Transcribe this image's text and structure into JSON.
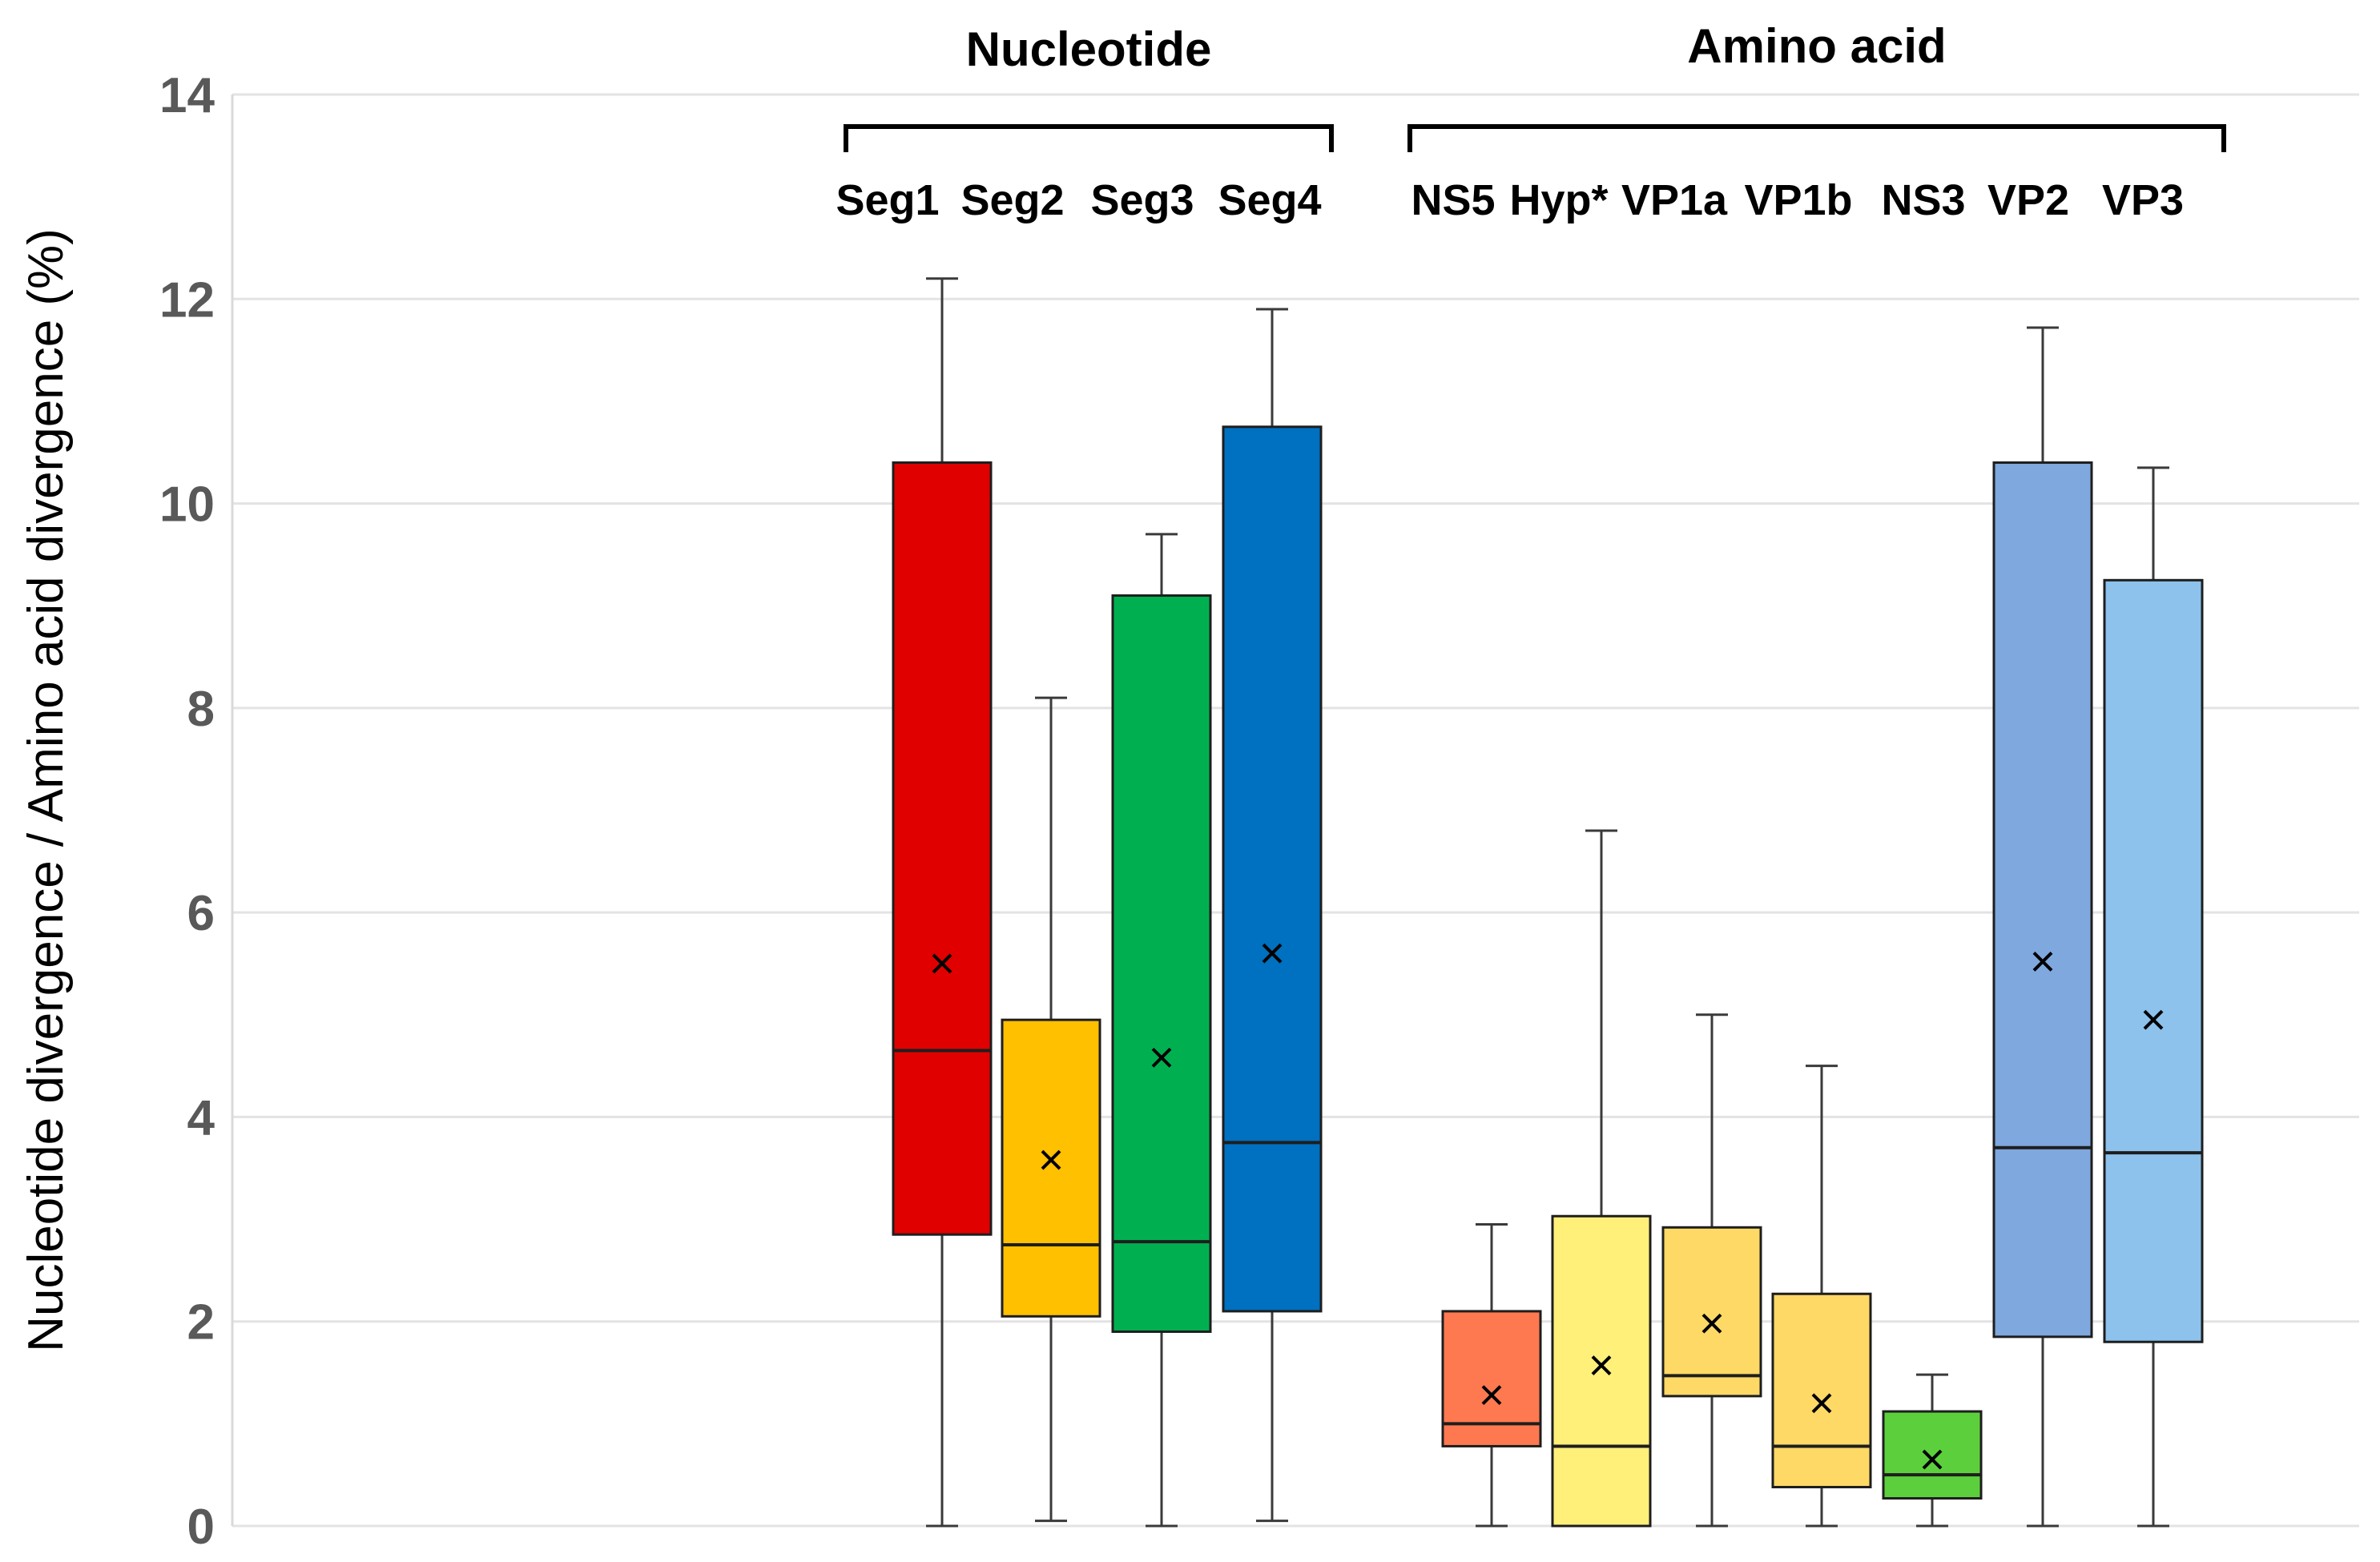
{
  "chart_data": {
    "type": "box",
    "ylabel": "Nucleotide divergence / Amino acid divergence (%)",
    "ylim": [
      0,
      14
    ],
    "yticks": [
      0,
      2,
      4,
      6,
      8,
      10,
      12,
      14
    ],
    "grid": true,
    "groups": [
      {
        "label": "Nucleotide",
        "categories": [
          "Seg1",
          "Seg2",
          "Seg3",
          "Seg4"
        ]
      },
      {
        "label": "Amino acid",
        "categories": [
          "NS5",
          "Hyp*",
          "VP1a",
          "VP1b",
          "NS3",
          "VP2",
          "VP3"
        ]
      }
    ],
    "boxes": [
      {
        "category": "Seg1",
        "min": 0.0,
        "q1": 2.85,
        "median": 4.65,
        "q3": 10.4,
        "max": 12.2,
        "mean": 5.5,
        "color": "#e00000"
      },
      {
        "category": "Seg2",
        "min": 0.05,
        "q1": 2.05,
        "median": 2.75,
        "q3": 4.95,
        "max": 8.1,
        "mean": 3.58,
        "color": "#ffc000"
      },
      {
        "category": "Seg3",
        "min": 0.0,
        "q1": 1.9,
        "median": 2.78,
        "q3": 9.1,
        "max": 9.7,
        "mean": 4.58,
        "color": "#00b050"
      },
      {
        "category": "Seg4",
        "min": 0.05,
        "q1": 2.1,
        "median": 3.75,
        "q3": 10.75,
        "max": 11.9,
        "mean": 5.6,
        "color": "#0070c0"
      },
      {
        "category": "NS5",
        "min": 0.0,
        "q1": 0.78,
        "median": 1.0,
        "q3": 2.1,
        "max": 2.95,
        "mean": 1.28,
        "color": "#ff7950"
      },
      {
        "category": "Hyp*",
        "min": 0.0,
        "q1": 0.0,
        "median": 0.78,
        "q3": 3.03,
        "max": 6.8,
        "mean": 1.57,
        "color": "#fff07a"
      },
      {
        "category": "VP1a",
        "min": 0.0,
        "q1": 1.27,
        "median": 1.47,
        "q3": 2.92,
        "max": 5.0,
        "mean": 1.98,
        "color": "#ffd966"
      },
      {
        "category": "VP1b",
        "min": 0.0,
        "q1": 0.38,
        "median": 0.78,
        "q3": 2.27,
        "max": 4.5,
        "mean": 1.2,
        "color": "#ffd966"
      },
      {
        "category": "NS3",
        "min": 0.0,
        "q1": 0.27,
        "median": 0.5,
        "q3": 1.12,
        "max": 1.48,
        "mean": 0.65,
        "color": "#5cd03c"
      },
      {
        "category": "VP2",
        "min": 0.0,
        "q1": 1.85,
        "median": 3.7,
        "q3": 10.4,
        "max": 11.72,
        "mean": 5.52,
        "color": "#7ea8de"
      },
      {
        "category": "VP3",
        "min": 0.0,
        "q1": 1.8,
        "median": 3.65,
        "q3": 9.25,
        "max": 10.35,
        "mean": 4.95,
        "color": "#8cc2ec"
      }
    ]
  }
}
